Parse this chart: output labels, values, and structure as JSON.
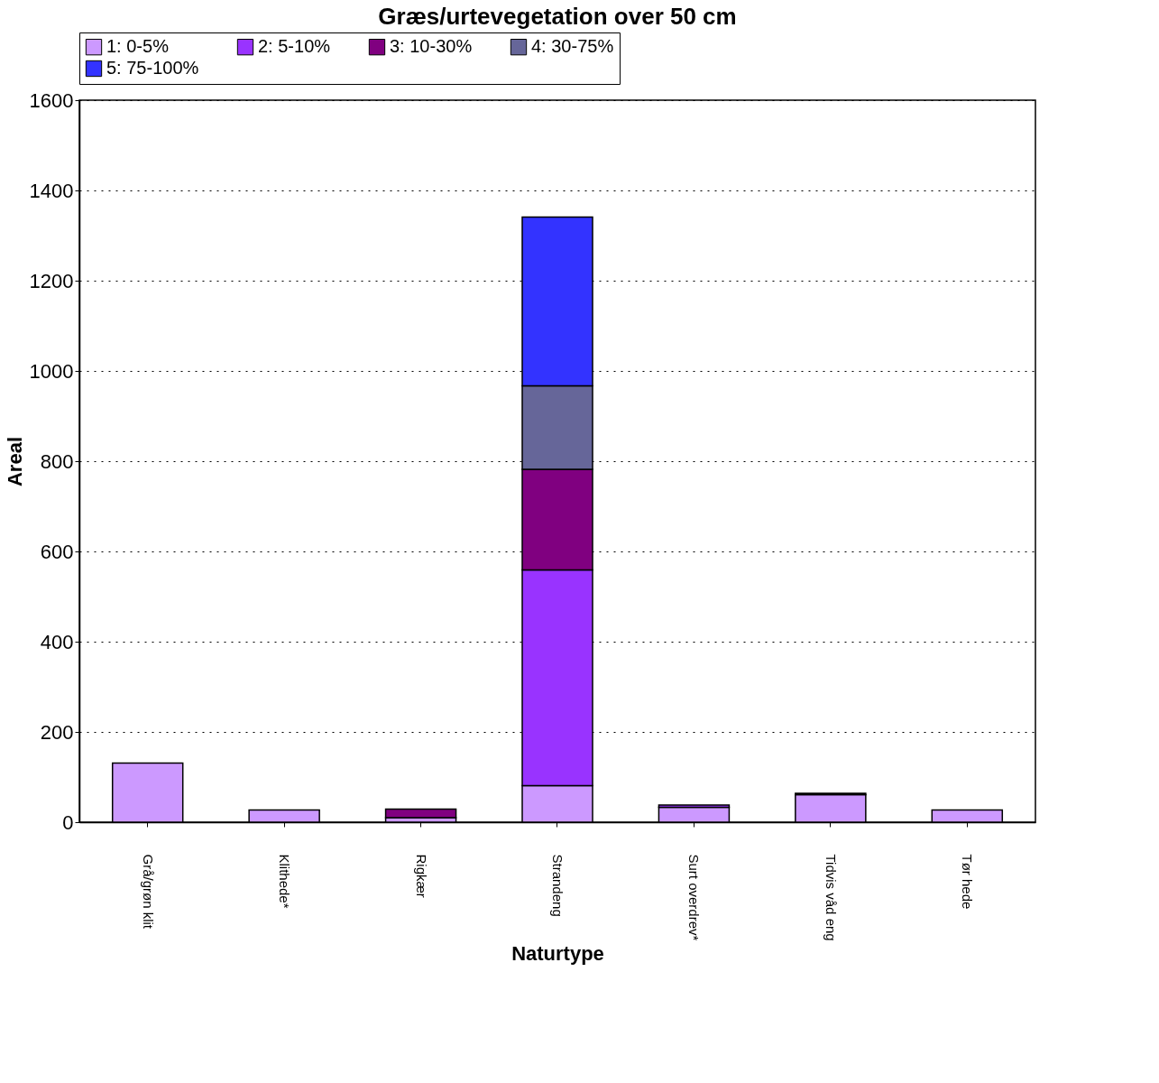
{
  "chart_data": {
    "type": "bar",
    "stacked": true,
    "title": "Græs/urtevegetation over 50 cm",
    "xlabel": "Naturtype",
    "ylabel": "Areal",
    "categories": [
      "Grå/grøn klit",
      "Klithede*",
      "Rigkær",
      "Strandeng",
      "Surt overdrev*",
      "Tidvis våd eng",
      "Tør hede"
    ],
    "series": [
      {
        "name": "1: 0-5%",
        "color": "#cc99ff",
        "values": [
          131,
          27,
          10,
          81,
          33,
          61,
          27
        ]
      },
      {
        "name": "2: 5-10%",
        "color": "#9933ff",
        "values": [
          null,
          null,
          null,
          478,
          5,
          null,
          null
        ]
      },
      {
        "name": "3: 10-30%",
        "color": "#800080",
        "values": [
          null,
          null,
          19,
          223,
          null,
          3,
          null
        ]
      },
      {
        "name": "4: 30-75%",
        "color": "#666699",
        "values": [
          null,
          null,
          null,
          185,
          null,
          null,
          null
        ]
      },
      {
        "name": "5: 75-100%",
        "color": "#3333ff",
        "values": [
          null,
          null,
          null,
          374,
          null,
          null,
          null
        ]
      }
    ],
    "ylim": [
      0,
      1600
    ],
    "yticks": [
      0,
      200,
      400,
      600,
      800,
      1000,
      1200,
      1400,
      1600
    ],
    "grid": "y",
    "legend": "top"
  }
}
